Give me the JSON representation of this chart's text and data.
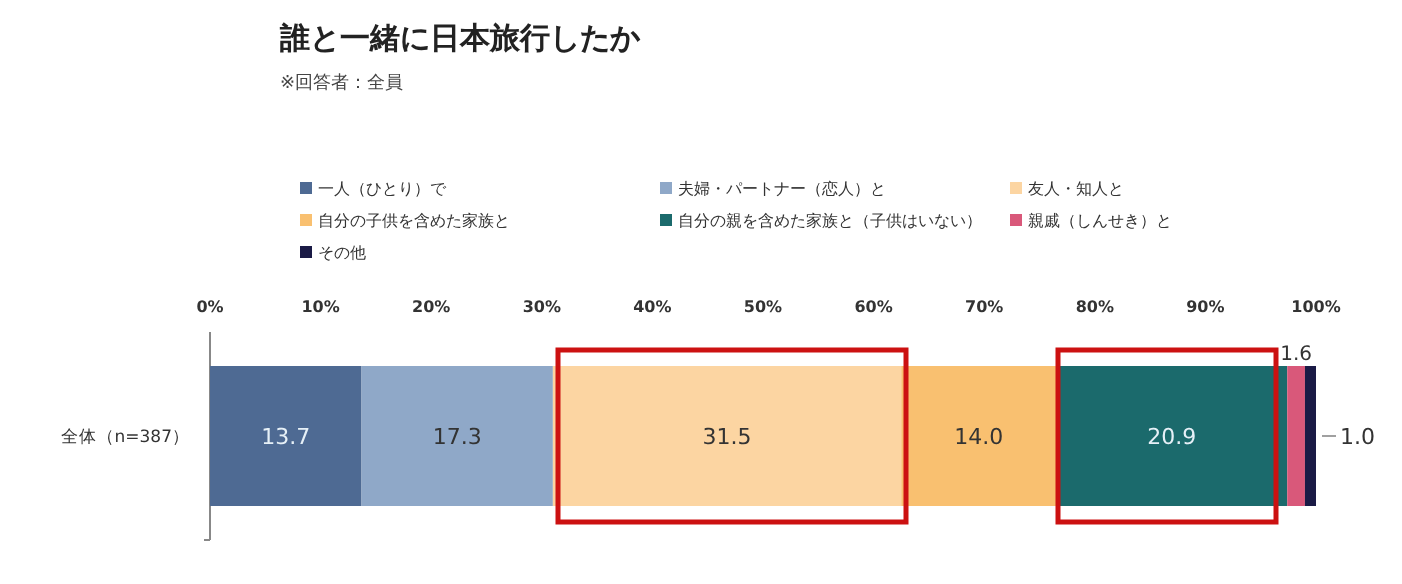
{
  "chart_data": {
    "type": "bar",
    "orientation": "horizontal",
    "stacked": true,
    "title": "誰と一緒に日本旅行したか",
    "subtitle": "※回答者：全員",
    "categories": [
      "全体（n=387）"
    ],
    "series": [
      {
        "name": "一人（ひとり）で",
        "color": "#4e6a93",
        "values": [
          13.7
        ],
        "value_labels": [
          "13.7"
        ]
      },
      {
        "name": "夫婦・パートナー（恋人）と",
        "color": "#8fa8c8",
        "values": [
          17.3
        ],
        "value_labels": [
          "17.3"
        ]
      },
      {
        "name": "友人・知人と",
        "color": "#fcd5a2",
        "values": [
          31.5
        ],
        "value_labels": [
          "31.5"
        ]
      },
      {
        "name": "自分の子供を含めた家族と",
        "color": "#f9c070",
        "values": [
          14.0
        ],
        "value_labels": [
          "14.0"
        ]
      },
      {
        "name": "自分の親を含めた家族と（子供はいない）",
        "color": "#1b6a6c",
        "values": [
          20.9
        ],
        "value_labels": [
          "20.9"
        ]
      },
      {
        "name": "親戚（しんせき）と",
        "color": "#d9587a",
        "values": [
          1.6
        ],
        "value_labels": [
          "1.6"
        ]
      },
      {
        "name": "その他",
        "color": "#1a1a45",
        "values": [
          1.0
        ],
        "value_labels": [
          "1.0"
        ]
      }
    ],
    "xlim": [
      0,
      100
    ],
    "xticks": [
      {
        "value": 0,
        "label": "0%"
      },
      {
        "value": 10,
        "label": "10%"
      },
      {
        "value": 20,
        "label": "20%"
      },
      {
        "value": 30,
        "label": "30%"
      },
      {
        "value": 40,
        "label": "40%"
      },
      {
        "value": 50,
        "label": "50%"
      },
      {
        "value": 60,
        "label": "60%"
      },
      {
        "value": 70,
        "label": "70%"
      },
      {
        "value": 80,
        "label": "80%"
      },
      {
        "value": 90,
        "label": "90%"
      },
      {
        "value": 100,
        "label": "100%"
      }
    ],
    "legend": "top"
  }
}
